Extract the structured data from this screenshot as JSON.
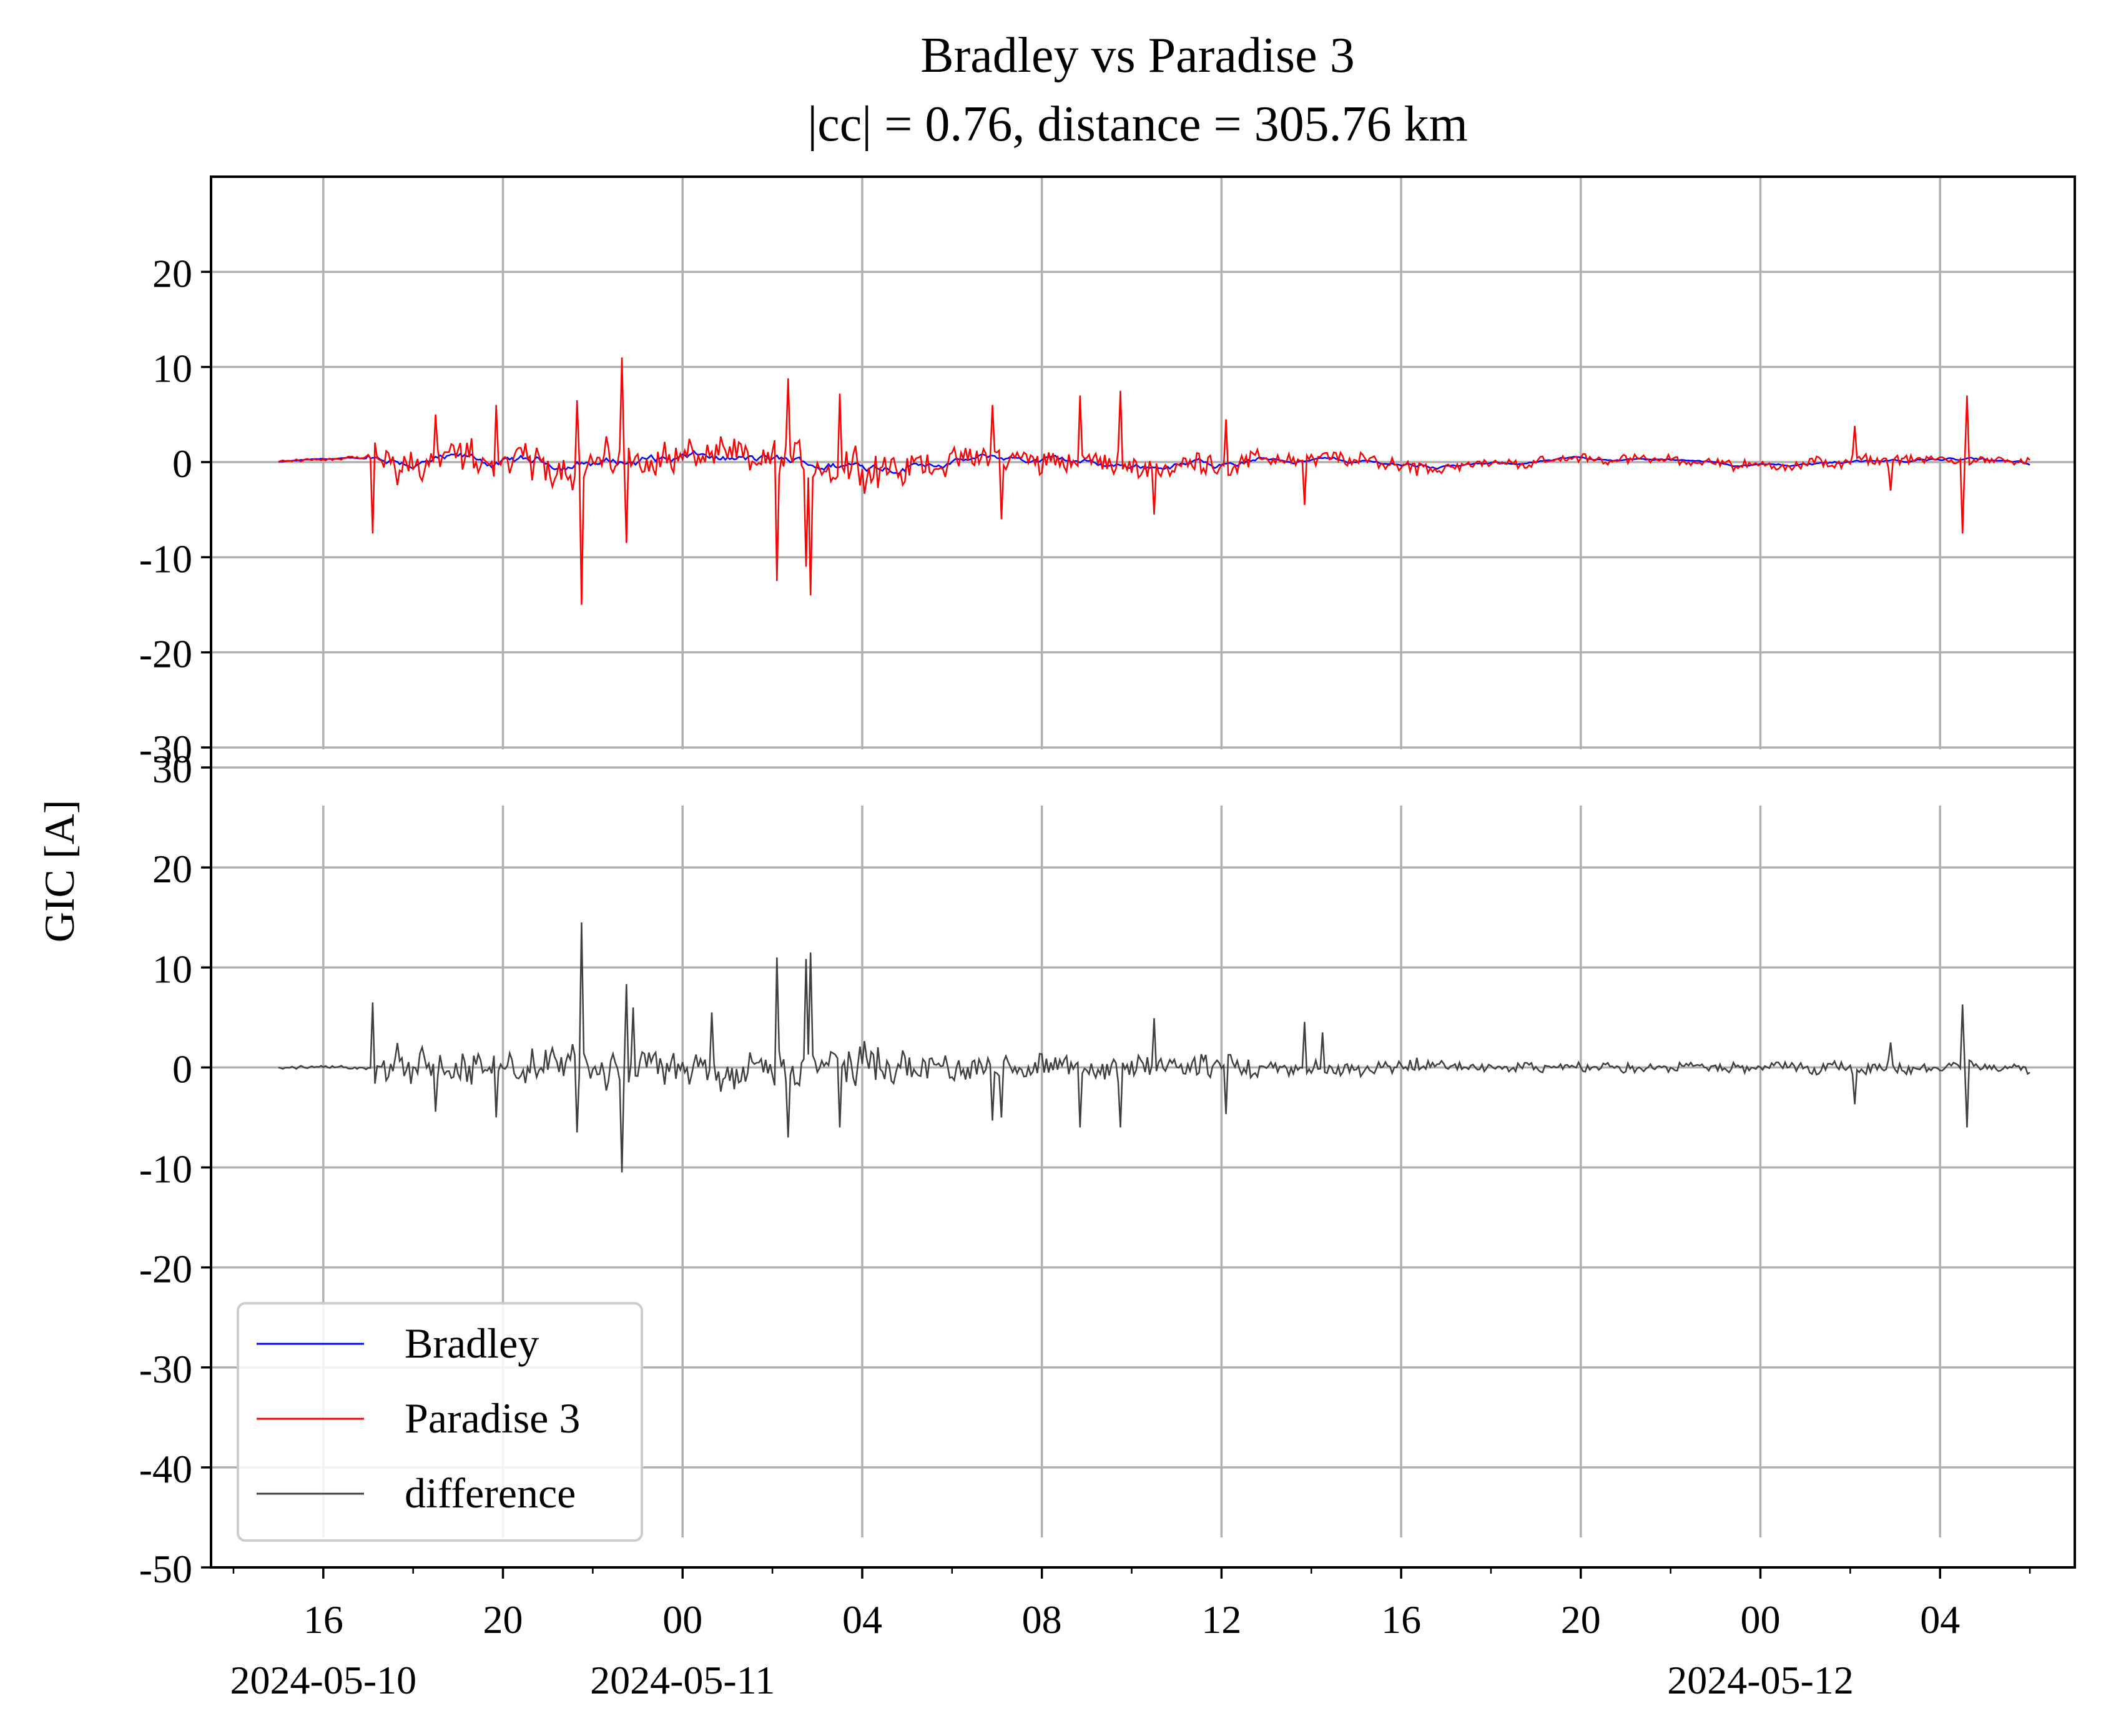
{
  "chart_data": {
    "type": "line",
    "title": "Bradley vs Paradise 3",
    "subtitle": "|cc| = 0.76, distance = 305.76 km",
    "ylabel": "GIC [A]",
    "xlabel": "",
    "grid": true,
    "legend_position": "lower-left",
    "x_start": "2024-05-10 15:00",
    "x_end": "2024-05-12 06:00",
    "xlim": [
      "2024-05-10 13:30",
      "2024-05-12 07:00"
    ],
    "x_major_tick_labels": [
      "16",
      "20",
      "00",
      "04",
      "08",
      "12",
      "16",
      "20",
      "00",
      "04"
    ],
    "x_date_labels": [
      {
        "at": "2024-05-10 16:00",
        "text": "2024-05-10"
      },
      {
        "at": "2024-05-11 00:00",
        "text": "2024-05-11"
      },
      {
        "at": "2024-05-12 00:00",
        "text": "2024-05-12"
      }
    ],
    "panels": [
      {
        "name": "top",
        "ylim": [
          -30,
          30
        ],
        "yticks": [
          -30,
          -20,
          -10,
          0,
          10,
          20
        ],
        "series": [
          {
            "name": "Bradley",
            "color": "#0000ff"
          },
          {
            "name": "Paradise 3",
            "color": "#ff0000"
          }
        ]
      },
      {
        "name": "bottom",
        "ylim": [
          -50,
          32
        ],
        "yticks": [
          -50,
          -40,
          -30,
          -20,
          -10,
          0,
          10,
          20,
          30
        ],
        "series": [
          {
            "name": "difference",
            "color": "#404040"
          }
        ]
      }
    ],
    "legend": [
      {
        "label": "Bradley",
        "color": "#0000ff"
      },
      {
        "label": "Paradise 3",
        "color": "#ff0000"
      },
      {
        "label": "difference",
        "color": "#404040"
      }
    ],
    "notable_points": {
      "paradise3": [
        {
          "t": "2024-05-10 17:05",
          "v": -7.5
        },
        {
          "t": "2024-05-10 18:30",
          "v": 5.0
        },
        {
          "t": "2024-05-10 19:50",
          "v": 6.0
        },
        {
          "t": "2024-05-10 21:40",
          "v": 6.5
        },
        {
          "t": "2024-05-10 21:45",
          "v": -15.0
        },
        {
          "t": "2024-05-10 22:40",
          "v": 11.0
        },
        {
          "t": "2024-05-10 22:45",
          "v": -8.5
        },
        {
          "t": "2024-05-11 02:05",
          "v": -12.5
        },
        {
          "t": "2024-05-11 02:20",
          "v": 8.8
        },
        {
          "t": "2024-05-11 02:45",
          "v": -11.0
        },
        {
          "t": "2024-05-11 02:50",
          "v": -14.0
        },
        {
          "t": "2024-05-11 03:30",
          "v": 7.2
        },
        {
          "t": "2024-05-11 06:55",
          "v": 6.0
        },
        {
          "t": "2024-05-11 07:05",
          "v": -6.0
        },
        {
          "t": "2024-05-11 08:50",
          "v": 7.0
        },
        {
          "t": "2024-05-11 09:45",
          "v": 7.5
        },
        {
          "t": "2024-05-11 10:30",
          "v": -5.5
        },
        {
          "t": "2024-05-11 12:05",
          "v": 4.5
        },
        {
          "t": "2024-05-11 13:50",
          "v": -4.5
        },
        {
          "t": "2024-05-12 02:05",
          "v": 3.8
        },
        {
          "t": "2024-05-12 02:55",
          "v": -3.0
        },
        {
          "t": "2024-05-12 04:30",
          "v": -7.5
        },
        {
          "t": "2024-05-12 04:35",
          "v": 7.0
        }
      ],
      "difference": [
        {
          "t": "2024-05-10 17:05",
          "v": 6.5
        },
        {
          "t": "2024-05-10 19:50",
          "v": -5.0
        },
        {
          "t": "2024-05-10 21:45",
          "v": 14.5
        },
        {
          "t": "2024-05-10 21:40",
          "v": -6.5
        },
        {
          "t": "2024-05-10 22:40",
          "v": -10.5
        },
        {
          "t": "2024-05-10 22:55",
          "v": 6.0
        },
        {
          "t": "2024-05-11 00:40",
          "v": 5.5
        },
        {
          "t": "2024-05-11 02:05",
          "v": 11.0
        },
        {
          "t": "2024-05-11 02:20",
          "v": -7.0
        },
        {
          "t": "2024-05-11 02:50",
          "v": 11.5
        },
        {
          "t": "2024-05-11 03:30",
          "v": -6.0
        },
        {
          "t": "2024-05-11 07:05",
          "v": -5.0
        },
        {
          "t": "2024-05-11 08:50",
          "v": -6.0
        },
        {
          "t": "2024-05-11 09:45",
          "v": -6.0
        },
        {
          "t": "2024-05-11 14:15",
          "v": 3.5
        },
        {
          "t": "2024-05-12 02:55",
          "v": 2.5
        },
        {
          "t": "2024-05-12 04:30",
          "v": 6.3
        },
        {
          "t": "2024-05-12 04:35",
          "v": -6.0
        }
      ]
    }
  }
}
